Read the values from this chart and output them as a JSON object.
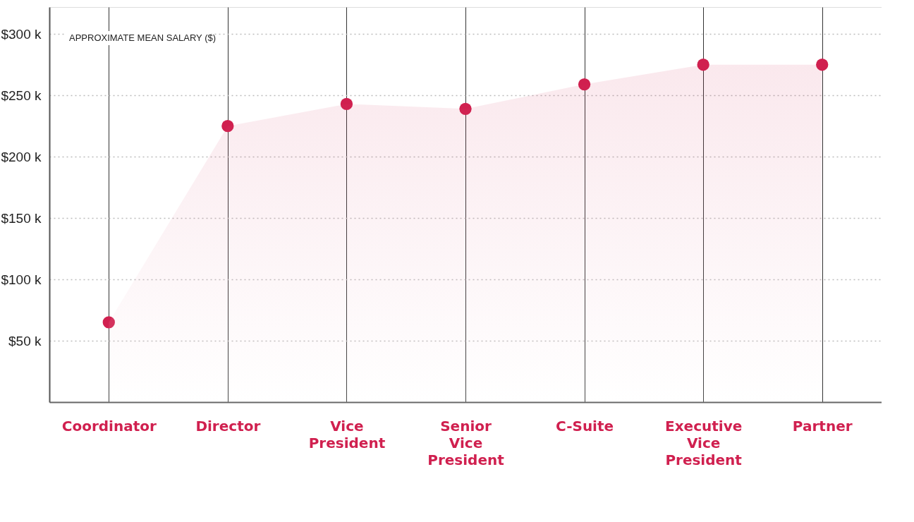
{
  "chart_data": {
    "type": "area",
    "grid": true,
    "annotations": [
      "APPROXIMATE MEAN SALARY ($)"
    ],
    "categories": [
      "Coordinator",
      "Director",
      "Vice President",
      "Senior Vice President",
      "C-Suite",
      "Executive Vice President",
      "Partner"
    ],
    "series": [
      {
        "color": "#d0204f",
        "values": [
          65,
          225,
          243,
          239,
          259,
          275,
          275
        ]
      },
      {
        "type": "scatter",
        "marker": "circle",
        "color": "#d0204f",
        "values": [
          65,
          225,
          243,
          239,
          259,
          275,
          275
        ]
      }
    ],
    "ylim": [
      0,
      322
    ],
    "yticks": [
      {
        "value": 50,
        "label": "$50 k"
      },
      {
        "value": 100,
        "label": "$100 k"
      },
      {
        "value": 150,
        "label": "$150 k"
      },
      {
        "value": 200,
        "label": "$200 k"
      },
      {
        "value": 250,
        "label": "$250 k"
      },
      {
        "value": 300,
        "label": "$300 k"
      }
    ]
  }
}
